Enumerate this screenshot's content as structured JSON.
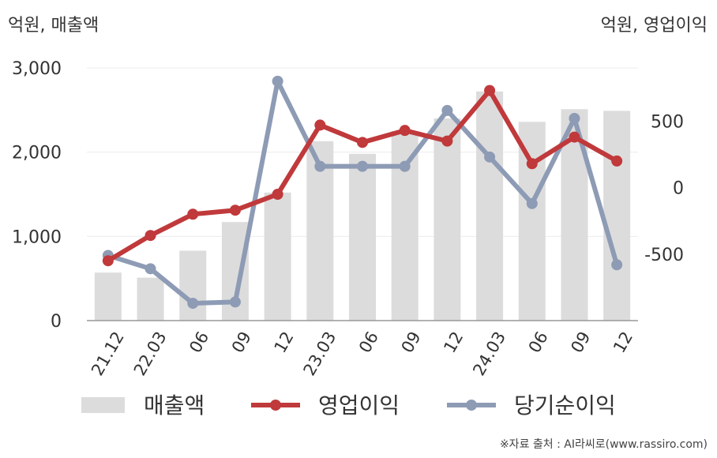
{
  "unit_left": "억원, 매출액",
  "unit_right": "억원, 영업이익",
  "source": "※자료 출처 : AI라씨로(www.rassiro.com)",
  "colors": {
    "bar": "#dcdcdc",
    "operating_profit": "#c0393b",
    "net_income": "#8e9bb5",
    "axis": "#999999",
    "grid": "#ececec",
    "text": "#333333"
  },
  "chart_data": {
    "type": "bar+line",
    "categories": [
      "21.12",
      "22.03",
      "06",
      "09",
      "12",
      "23.03",
      "06",
      "09",
      "12",
      "24.03",
      "06",
      "09",
      "12"
    ],
    "left_axis": {
      "ticks": [
        "0",
        "1,000",
        "2,000",
        "3,000"
      ],
      "ylim": [
        0,
        3000
      ]
    },
    "right_axis": {
      "ticks": [
        "-500",
        "0",
        "500"
      ],
      "ylim": [
        -1000,
        900
      ]
    },
    "series": [
      {
        "name": "매출액",
        "type": "bar",
        "axis": "left",
        "values": [
          570,
          510,
          830,
          1170,
          1520,
          2130,
          1980,
          2250,
          2400,
          2720,
          2360,
          2510,
          2490
        ]
      },
      {
        "name": "영업이익",
        "type": "line",
        "axis": "right",
        "values": [
          -550,
          -360,
          -200,
          -170,
          -50,
          470,
          340,
          430,
          350,
          730,
          180,
          380,
          200
        ]
      },
      {
        "name": "당기순이익",
        "type": "line",
        "axis": "right",
        "values": [
          -510,
          -610,
          -870,
          -860,
          800,
          160,
          160,
          160,
          580,
          230,
          -120,
          520,
          -580
        ]
      }
    ],
    "legend": [
      "매출액",
      "영업이익",
      "당기순이익"
    ],
    "legend_position": "bottom",
    "grid": true
  }
}
